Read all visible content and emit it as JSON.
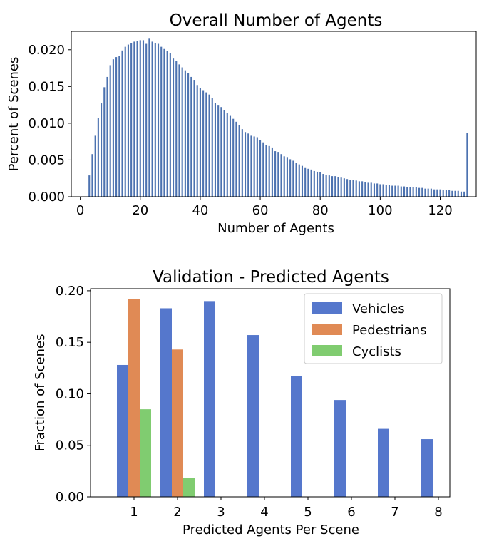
{
  "colors": {
    "hist": "#4c72b0",
    "vehicles": "#5577cc",
    "pedestrians": "#e08a55",
    "cyclists": "#80cc70"
  },
  "chart_data": [
    {
      "type": "bar",
      "title": "Overall Number of Agents",
      "xlabel": "Number of Agents",
      "ylabel": "Percent of Scenes",
      "xlim": [
        -3,
        132
      ],
      "ylim": [
        0,
        0.0225
      ],
      "xticks": [
        0,
        20,
        40,
        60,
        80,
        100,
        120
      ],
      "xtick_labels": [
        "0",
        "20",
        "40",
        "60",
        "80",
        "100",
        "120"
      ],
      "yticks": [
        0,
        0.005,
        0.01,
        0.015,
        0.02
      ],
      "ytick_labels": [
        "0.000",
        "0.005",
        "0.010",
        "0.015",
        "0.020"
      ],
      "grid": false,
      "x": [
        3,
        4,
        5,
        6,
        7,
        8,
        9,
        10,
        11,
        12,
        13,
        14,
        15,
        16,
        17,
        18,
        19,
        20,
        21,
        22,
        23,
        24,
        25,
        26,
        27,
        28,
        29,
        30,
        31,
        32,
        33,
        34,
        35,
        36,
        37,
        38,
        39,
        40,
        41,
        42,
        43,
        44,
        45,
        46,
        47,
        48,
        49,
        50,
        51,
        52,
        53,
        54,
        55,
        56,
        57,
        58,
        59,
        60,
        61,
        62,
        63,
        64,
        65,
        66,
        67,
        68,
        69,
        70,
        71,
        72,
        73,
        74,
        75,
        76,
        77,
        78,
        79,
        80,
        81,
        82,
        83,
        84,
        85,
        86,
        87,
        88,
        89,
        90,
        91,
        92,
        93,
        94,
        95,
        96,
        97,
        98,
        99,
        100,
        101,
        102,
        103,
        104,
        105,
        106,
        107,
        108,
        109,
        110,
        111,
        112,
        113,
        114,
        115,
        116,
        117,
        118,
        119,
        120,
        121,
        122,
        123,
        124,
        125,
        126,
        127,
        128,
        129
      ],
      "values": [
        0.0029,
        0.0058,
        0.0083,
        0.0107,
        0.0127,
        0.0149,
        0.0163,
        0.0179,
        0.0187,
        0.019,
        0.0192,
        0.0199,
        0.0204,
        0.0207,
        0.0209,
        0.0211,
        0.0212,
        0.0213,
        0.0213,
        0.0208,
        0.0215,
        0.0211,
        0.0209,
        0.0208,
        0.0204,
        0.0201,
        0.0198,
        0.0195,
        0.0188,
        0.0185,
        0.018,
        0.0176,
        0.0172,
        0.0168,
        0.0163,
        0.0159,
        0.0152,
        0.0148,
        0.0145,
        0.0142,
        0.0139,
        0.0134,
        0.0128,
        0.0124,
        0.0122,
        0.0118,
        0.0114,
        0.011,
        0.0106,
        0.0102,
        0.0097,
        0.0092,
        0.0088,
        0.0086,
        0.0083,
        0.0082,
        0.0081,
        0.0077,
        0.0074,
        0.007,
        0.0069,
        0.0067,
        0.0062,
        0.0061,
        0.0058,
        0.0055,
        0.0054,
        0.0051,
        0.0049,
        0.0046,
        0.0044,
        0.0042,
        0.004,
        0.0038,
        0.0037,
        0.0035,
        0.0034,
        0.0033,
        0.0031,
        0.003,
        0.0029,
        0.0028,
        0.0028,
        0.0027,
        0.0026,
        0.0025,
        0.0024,
        0.0023,
        0.0023,
        0.0022,
        0.0021,
        0.0021,
        0.002,
        0.0019,
        0.0019,
        0.0018,
        0.0018,
        0.0017,
        0.0017,
        0.0016,
        0.0016,
        0.0015,
        0.0015,
        0.0015,
        0.0014,
        0.0014,
        0.0013,
        0.0013,
        0.0013,
        0.0013,
        0.0012,
        0.0012,
        0.0011,
        0.0011,
        0.0011,
        0.001,
        0.001,
        0.001,
        0.0009,
        0.0009,
        0.0009,
        0.0008,
        0.0008,
        0.0008,
        0.0007,
        0.0007,
        0.0087
      ]
    },
    {
      "type": "bar",
      "title": "Validation - Predicted Agents",
      "xlabel": "Predicted Agents Per Scene",
      "ylabel": "Fraction of Scenes",
      "categories": [
        "1",
        "2",
        "3",
        "4",
        "5",
        "6",
        "7",
        "8"
      ],
      "ylim": [
        0,
        0.202
      ],
      "yticks": [
        0,
        0.05,
        0.1,
        0.15,
        0.2
      ],
      "ytick_labels": [
        "0.00",
        "0.05",
        "0.10",
        "0.15",
        "0.20"
      ],
      "grid": false,
      "legend_position": "top-right",
      "series": [
        {
          "name": "Vehicles",
          "values": [
            0.128,
            0.183,
            0.19,
            0.157,
            0.117,
            0.094,
            0.066,
            0.056
          ]
        },
        {
          "name": "Pedestrians",
          "values": [
            0.192,
            0.143,
            0,
            0,
            0,
            0,
            0,
            0
          ]
        },
        {
          "name": "Cyclists",
          "values": [
            0.085,
            0.018,
            0,
            0,
            0,
            0,
            0,
            0
          ]
        }
      ]
    }
  ]
}
